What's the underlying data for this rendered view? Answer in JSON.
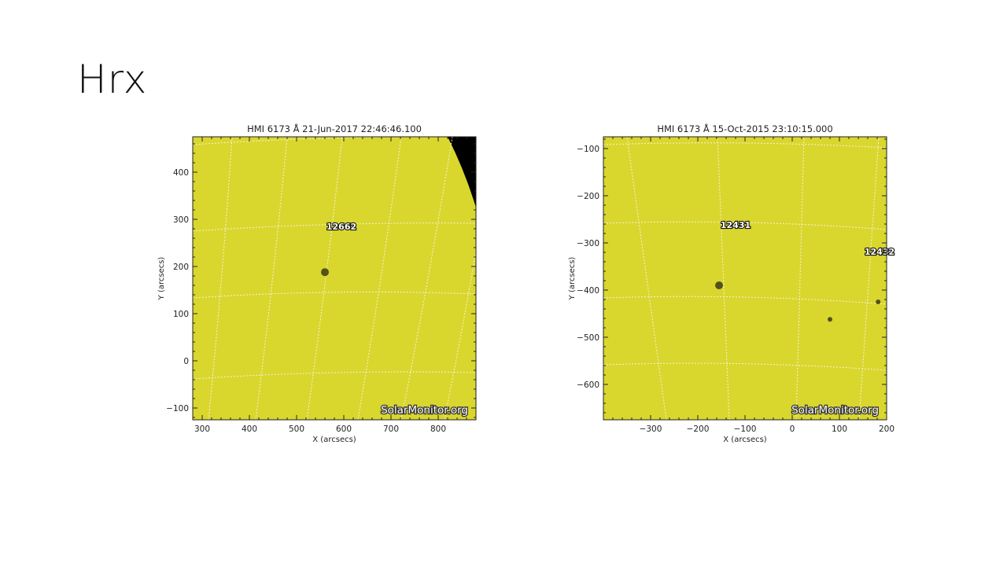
{
  "slide": {
    "title": "Hrx"
  },
  "colors": {
    "disk": "#d9d72e",
    "space": "#000000",
    "grid": "#f4f4d8",
    "spot": "#3a3a14"
  },
  "panels": [
    {
      "title": "HMI 6173 Å 21-Jun-2017 22:46:46.100",
      "xlabel": "X (arcsecs)",
      "ylabel": "Y (arcsecs)",
      "xlim": [
        280,
        880
      ],
      "ylim": [
        -125,
        475
      ],
      "xticks": [
        300,
        400,
        500,
        600,
        700,
        800
      ],
      "yticks": [
        -100,
        0,
        100,
        200,
        300,
        400
      ],
      "regions": [
        {
          "label": "12662",
          "x": 595,
          "y": 278
        }
      ],
      "spots": [
        {
          "x": 560,
          "y": 188,
          "r": 5
        }
      ],
      "off_limb": true,
      "watermark": "SolarMonitor.org"
    },
    {
      "title": "HMI 6173 Å 15-Oct-2015 23:10:15.000",
      "xlabel": "X (arcsecs)",
      "ylabel": "Y (arcsecs)",
      "xlim": [
        -400,
        200
      ],
      "ylim": [
        -675,
        -75
      ],
      "xticks": [
        -300,
        -200,
        -100,
        0,
        100,
        200
      ],
      "yticks": [
        -600,
        -500,
        -400,
        -300,
        -200,
        -100
      ],
      "regions": [
        {
          "label": "12431",
          "x": -120,
          "y": -268
        },
        {
          "label": "12432",
          "x": 185,
          "y": -325
        }
      ],
      "spots": [
        {
          "x": -155,
          "y": -390,
          "r": 5
        },
        {
          "x": 80,
          "y": -462,
          "r": 3
        },
        {
          "x": 182,
          "y": -425,
          "r": 3
        }
      ],
      "off_limb": false,
      "watermark": "SolarMonitor.org"
    }
  ]
}
